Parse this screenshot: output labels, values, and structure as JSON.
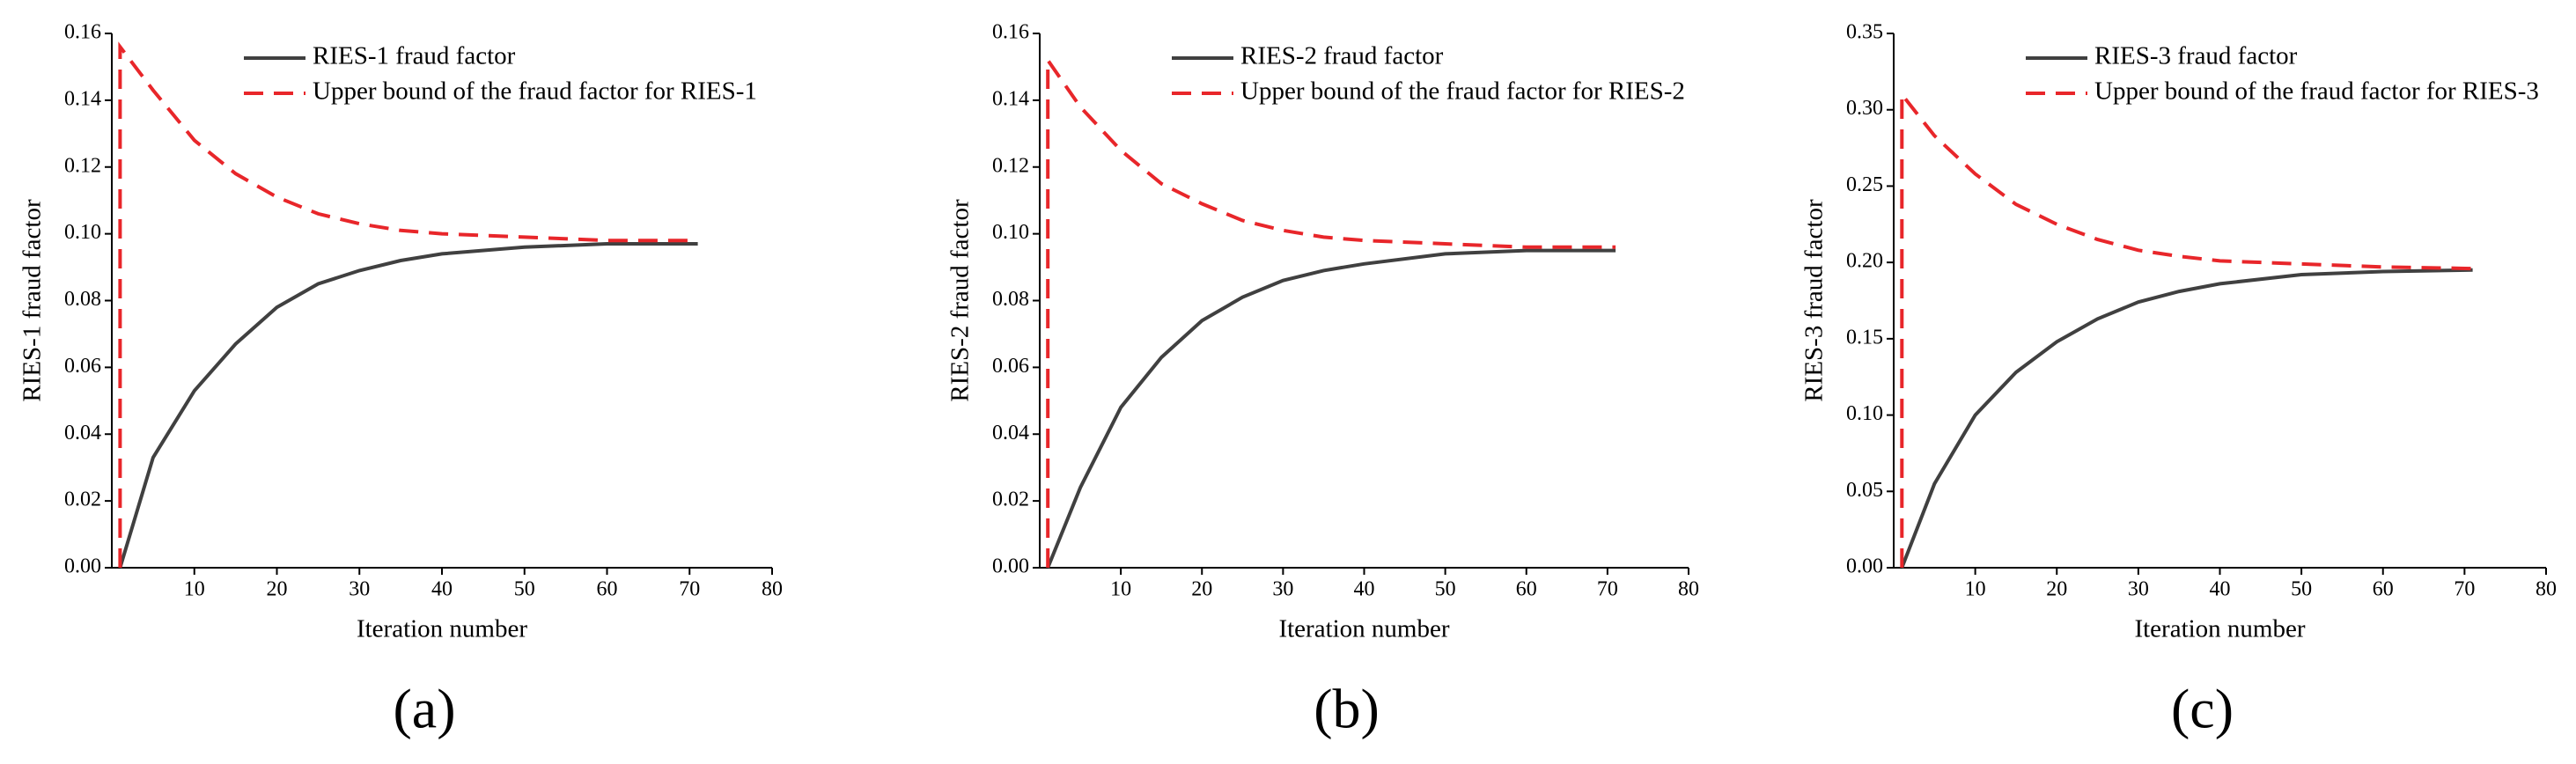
{
  "chart_data": [
    {
      "type": "line",
      "panel_label": "(a)",
      "xlabel": "Iteration number",
      "ylabel": "RIES-1 fraud factor",
      "xlim": [
        0,
        80
      ],
      "xticks": [
        10,
        20,
        30,
        40,
        50,
        60,
        70,
        80
      ],
      "ylim": [
        0,
        0.16
      ],
      "yticks": [
        {
          "value": 0,
          "label": "0.00"
        },
        {
          "value": 0.02,
          "label": "0.02"
        },
        {
          "value": 0.04,
          "label": "0.04"
        },
        {
          "value": 0.06,
          "label": "0.06"
        },
        {
          "value": 0.08,
          "label": "0.08"
        },
        {
          "value": 0.1,
          "label": "0.10"
        },
        {
          "value": 0.12,
          "label": "0.12"
        },
        {
          "value": 0.14,
          "label": "0.14"
        },
        {
          "value": 0.16,
          "label": "0.16"
        }
      ],
      "series": [
        {
          "name": "RIES-1 fraud factor",
          "color": "#404040",
          "dash": false,
          "x": [
            1,
            5,
            10,
            15,
            20,
            25,
            30,
            35,
            40,
            50,
            60,
            71
          ],
          "values": [
            0,
            0.033,
            0.053,
            0.067,
            0.078,
            0.085,
            0.089,
            0.092,
            0.094,
            0.096,
            0.097,
            0.097
          ]
        },
        {
          "name": "Upper bound of the fraud factor for RIES-1",
          "color": "#e8262a",
          "dash": true,
          "x": [
            1,
            1,
            5,
            10,
            15,
            20,
            25,
            30,
            35,
            40,
            50,
            60,
            71
          ],
          "values": [
            0,
            0.156,
            0.143,
            0.128,
            0.118,
            0.111,
            0.106,
            0.103,
            0.101,
            0.1,
            0.099,
            0.098,
            0.098
          ]
        }
      ]
    },
    {
      "type": "line",
      "panel_label": "(b)",
      "xlabel": "Iteration number",
      "ylabel": "RIES-2 fraud factor",
      "xlim": [
        0,
        80
      ],
      "xticks": [
        10,
        20,
        30,
        40,
        50,
        60,
        70,
        80
      ],
      "ylim": [
        0,
        0.16
      ],
      "yticks": [
        {
          "value": 0,
          "label": "0.00"
        },
        {
          "value": 0.02,
          "label": "0.02"
        },
        {
          "value": 0.04,
          "label": "0.04"
        },
        {
          "value": 0.06,
          "label": "0.06"
        },
        {
          "value": 0.08,
          "label": "0.08"
        },
        {
          "value": 0.1,
          "label": "0.10"
        },
        {
          "value": 0.12,
          "label": "0.12"
        },
        {
          "value": 0.14,
          "label": "0.14"
        },
        {
          "value": 0.16,
          "label": "0.16"
        }
      ],
      "series": [
        {
          "name": "RIES-2 fraud factor",
          "color": "#404040",
          "dash": false,
          "x": [
            1,
            5,
            10,
            15,
            20,
            25,
            30,
            35,
            40,
            50,
            60,
            71
          ],
          "values": [
            0,
            0.024,
            0.048,
            0.063,
            0.074,
            0.081,
            0.086,
            0.089,
            0.091,
            0.094,
            0.095,
            0.095
          ]
        },
        {
          "name": "Upper bound of the fraud factor for RIES-2",
          "color": "#e8262a",
          "dash": true,
          "x": [
            1,
            1,
            5,
            10,
            15,
            20,
            25,
            30,
            35,
            40,
            50,
            60,
            71
          ],
          "values": [
            0,
            0.152,
            0.138,
            0.125,
            0.115,
            0.109,
            0.104,
            0.101,
            0.099,
            0.098,
            0.097,
            0.096,
            0.096
          ]
        }
      ]
    },
    {
      "type": "line",
      "panel_label": "(c)",
      "xlabel": "Iteration number",
      "ylabel": "RIES-3 fraud factor",
      "xlim": [
        0,
        80
      ],
      "xticks": [
        10,
        20,
        30,
        40,
        50,
        60,
        70,
        80
      ],
      "ylim": [
        0,
        0.35
      ],
      "yticks": [
        {
          "value": 0,
          "label": "0.00"
        },
        {
          "value": 0.05,
          "label": "0.05"
        },
        {
          "value": 0.1,
          "label": "0.10"
        },
        {
          "value": 0.15,
          "label": "0.15"
        },
        {
          "value": 0.2,
          "label": "0.20"
        },
        {
          "value": 0.25,
          "label": "0.25"
        },
        {
          "value": 0.3,
          "label": "0.30"
        },
        {
          "value": 0.35,
          "label": "0.35"
        }
      ],
      "series": [
        {
          "name": "RIES-3 fraud factor",
          "color": "#404040",
          "dash": false,
          "x": [
            1,
            5,
            10,
            15,
            20,
            25,
            30,
            35,
            40,
            50,
            60,
            71
          ],
          "values": [
            0,
            0.055,
            0.1,
            0.128,
            0.148,
            0.163,
            0.174,
            0.181,
            0.186,
            0.192,
            0.194,
            0.195
          ]
        },
        {
          "name": "Upper bound of the fraud factor for RIES-3",
          "color": "#e8262a",
          "dash": true,
          "x": [
            1,
            1,
            5,
            10,
            15,
            20,
            25,
            30,
            35,
            40,
            50,
            60,
            71
          ],
          "values": [
            0,
            0.31,
            0.283,
            0.258,
            0.238,
            0.225,
            0.215,
            0.208,
            0.204,
            0.201,
            0.199,
            0.197,
            0.196
          ]
        }
      ]
    }
  ]
}
